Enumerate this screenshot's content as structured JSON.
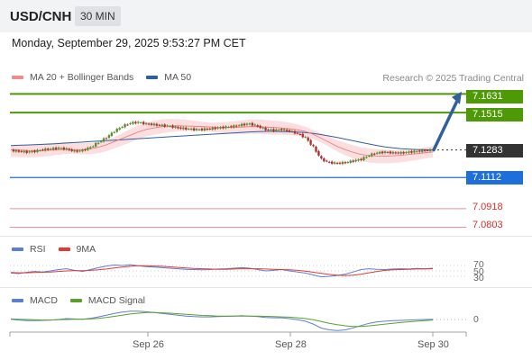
{
  "header": {
    "pair": "USD/CNH",
    "timeframe": "30 MIN"
  },
  "datetime": "Monday, September 29, 2025 9:53:27 PM CET",
  "legend": {
    "ma20": "MA 20 + Bollinger Bands",
    "ma50": "MA 50",
    "credit": "Research © 2025 Trading Central"
  },
  "colors": {
    "green": "#4e9a06",
    "blue": "#1e6fd9",
    "red": "#e06070",
    "candle_up": "#5b8f2e",
    "candle_down": "#b03030",
    "band": "#f8c9cc",
    "arrow": "#2f5fa0",
    "rsi": "#5b7fd6",
    "nine_ma": "#e53935",
    "macd": "#5b7fd6",
    "signal": "#5aa02c"
  },
  "levels": [
    {
      "label": "7.1631",
      "type": "resistance"
    },
    {
      "label": "7.1515",
      "type": "resistance"
    },
    {
      "label": "7.1283",
      "type": "last"
    },
    {
      "label": "7.1112",
      "type": "pivot"
    },
    {
      "label": "7.0918",
      "type": "support"
    },
    {
      "label": "7.0803",
      "type": "support"
    }
  ],
  "rsi": {
    "label": "RSI",
    "ma_label": "9MA",
    "levels": [
      "70",
      "50",
      "30"
    ]
  },
  "macd": {
    "label": "MACD",
    "signal_label": "MACD Signal",
    "zero": "0"
  },
  "x_labels": [
    "Sep 26",
    "Sep 28",
    "Sep 30"
  ],
  "chart_data": {
    "type": "candlestick",
    "ylim": [
      7.075,
      7.17
    ],
    "price": [
      7.128,
      7.1275,
      7.127,
      7.1275,
      7.1285,
      7.129,
      7.1295,
      7.1288,
      7.1275,
      7.128,
      7.13,
      7.133,
      7.136,
      7.14,
      7.143,
      7.145,
      7.1455,
      7.1445,
      7.144,
      7.1435,
      7.143,
      7.142,
      7.1415,
      7.141,
      7.141,
      7.1415,
      7.142,
      7.1425,
      7.143,
      7.144,
      7.1445,
      7.143,
      7.141,
      7.1405,
      7.141,
      7.14,
      7.1385,
      7.136,
      7.13,
      7.1225,
      7.1205,
      7.12,
      7.1205,
      7.1215,
      7.1225,
      7.125,
      7.1265,
      7.127,
      7.1265,
      7.1265,
      7.127,
      7.1275,
      7.128,
      7.1283
    ],
    "ma20": [
      7.1285,
      7.1283,
      7.128,
      7.1279,
      7.128,
      7.1282,
      7.1285,
      7.1287,
      7.1285,
      7.1285,
      7.129,
      7.13,
      7.1315,
      7.1335,
      7.1355,
      7.1375,
      7.1395,
      7.141,
      7.142,
      7.1428,
      7.1432,
      7.1433,
      7.1432,
      7.143,
      7.1428,
      7.1426,
      7.1424,
      7.1423,
      7.1423,
      7.1425,
      7.1428,
      7.1428,
      7.1425,
      7.1422,
      7.142,
      7.1415,
      7.1408,
      7.1398,
      7.138,
      7.1355,
      7.133,
      7.1305,
      7.1285,
      7.1268,
      7.1255,
      7.1248,
      7.1245,
      7.1245,
      7.1247,
      7.125,
      7.1255,
      7.126,
      7.1265,
      7.127
    ],
    "ma50": [
      7.131,
      7.1312,
      7.1314,
      7.1316,
      7.1318,
      7.132,
      7.1323,
      7.1326,
      7.1329,
      7.1332,
      7.1335,
      7.1338,
      7.1341,
      7.1344,
      7.1347,
      7.135,
      7.1353,
      7.1356,
      7.1359,
      7.1362,
      7.1365,
      7.1368,
      7.1371,
      7.1374,
      7.1377,
      7.138,
      7.1383,
      7.1386,
      7.1389,
      7.1392,
      7.1395,
      7.1397,
      7.1398,
      7.1398,
      7.1397,
      7.1396,
      7.1394,
      7.1391,
      7.1386,
      7.1378,
      7.137,
      7.136,
      7.135,
      7.134,
      7.133,
      7.132,
      7.131,
      7.1302,
      7.1296,
      7.1291,
      7.1288,
      7.1286,
      7.1284,
      7.1283
    ],
    "rsi_values": [
      42,
      40,
      45,
      48,
      46,
      50,
      55,
      58,
      52,
      48,
      55,
      62,
      68,
      72,
      70,
      73,
      69,
      66,
      64,
      62,
      60,
      58,
      56,
      55,
      54,
      55,
      57,
      58,
      60,
      62,
      60,
      55,
      50,
      52,
      55,
      50,
      46,
      42,
      35,
      28,
      30,
      33,
      38,
      46,
      55,
      58,
      56,
      55,
      57,
      58,
      57,
      59,
      58,
      60
    ],
    "rsi_9ma": [
      44,
      43,
      43,
      44,
      45,
      46,
      48,
      50,
      51,
      51,
      52,
      54,
      57,
      61,
      64,
      67,
      69,
      69,
      68,
      67,
      65,
      63,
      61,
      59,
      58,
      57,
      56,
      56,
      57,
      58,
      58,
      58,
      57,
      56,
      55,
      54,
      52,
      49,
      45,
      41,
      37,
      34,
      33,
      34,
      38,
      43,
      48,
      52,
      54,
      55,
      56,
      57,
      57,
      58
    ],
    "macd_values": [
      0.1,
      -0.2,
      -0.4,
      -0.4,
      -0.3,
      -0.2,
      0.0,
      0.3,
      0.2,
      0.1,
      0.4,
      0.9,
      1.5,
      2.1,
      2.6,
      2.9,
      2.9,
      2.7,
      2.4,
      2.1,
      1.8,
      1.5,
      1.2,
      1.0,
      0.9,
      0.9,
      1.0,
      1.1,
      1.2,
      1.3,
      1.2,
      1.0,
      0.7,
      0.6,
      0.6,
      0.3,
      -0.1,
      -0.6,
      -1.6,
      -3.0,
      -3.6,
      -3.8,
      -3.6,
      -2.9,
      -2.1,
      -1.3,
      -0.8,
      -0.6,
      -0.4,
      -0.3,
      -0.2,
      -0.1,
      0.0,
      0.1
    ],
    "macd_signal": [
      0.2,
      0.1,
      0.0,
      -0.1,
      -0.2,
      -0.2,
      -0.1,
      0.0,
      0.1,
      0.1,
      0.2,
      0.4,
      0.7,
      1.1,
      1.5,
      1.9,
      2.2,
      2.4,
      2.4,
      2.3,
      2.2,
      2.0,
      1.8,
      1.6,
      1.4,
      1.3,
      1.2,
      1.2,
      1.2,
      1.2,
      1.2,
      1.2,
      1.1,
      1.0,
      0.9,
      0.8,
      0.6,
      0.3,
      -0.1,
      -0.7,
      -1.3,
      -1.8,
      -2.2,
      -2.4,
      -2.4,
      -2.2,
      -1.9,
      -1.6,
      -1.3,
      -1.0,
      -0.8,
      -0.6,
      -0.4,
      -0.2
    ]
  }
}
